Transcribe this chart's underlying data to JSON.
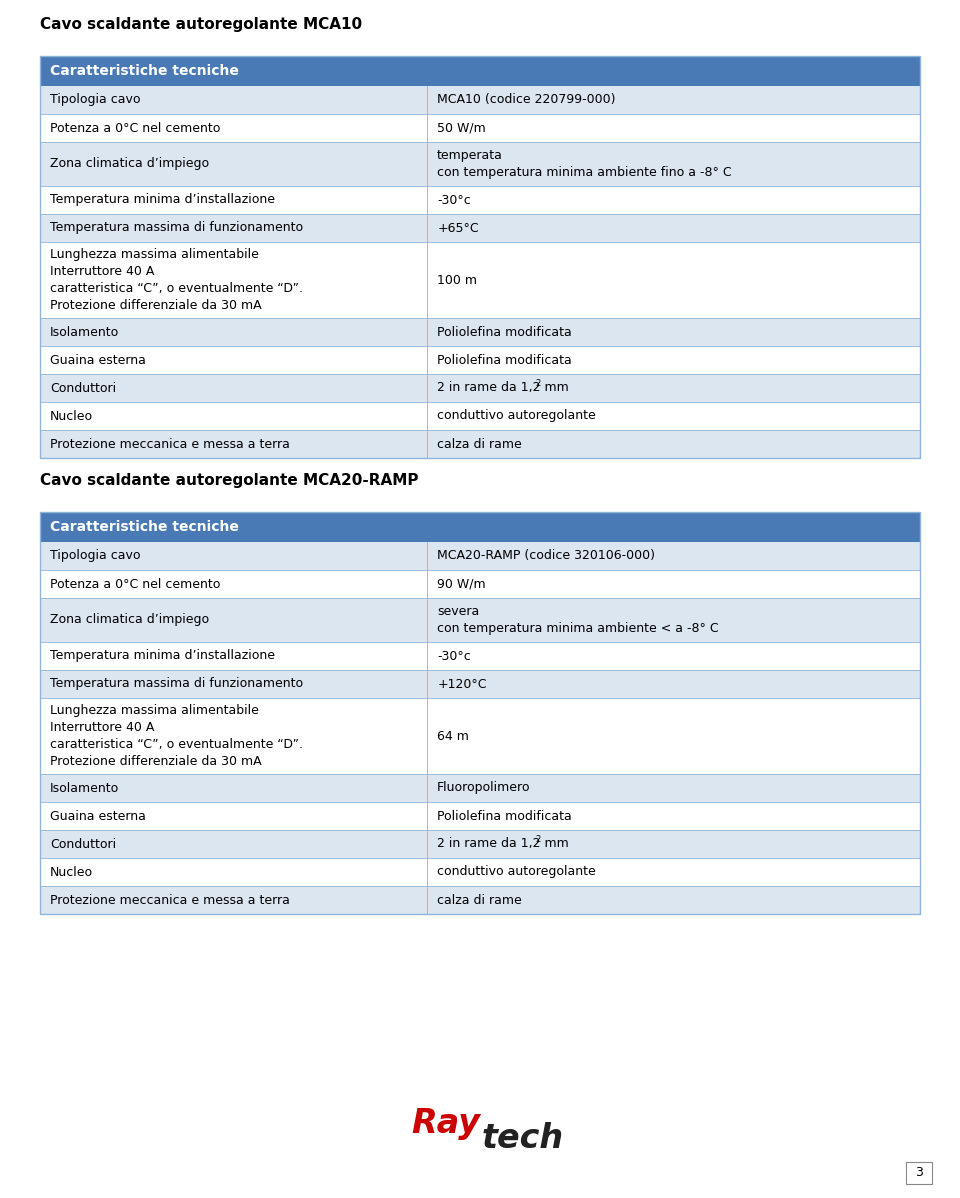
{
  "page_bg": "#ffffff",
  "header_bg": "#4a7ab5",
  "header_text_color": "#ffffff",
  "row_alt1": "#dce6f1",
  "row_alt2": "#ffffff",
  "text_color": "#000000",
  "border_color": "#8fb4d9",
  "title1": "Cavo scaldante autoregolante MCA10",
  "title2": "Cavo scaldante autoregolante MCA20-RAMP",
  "section_header": "Caratteristiche tecniche",
  "col_split": 0.44,
  "table1_rows": [
    [
      "Tipologia cavo",
      "MCA10 (codice 220799-000)"
    ],
    [
      "Potenza a 0°C nel cemento",
      "50 W/m"
    ],
    [
      "Zona climatica d’impiego",
      "temperata\ncon temperatura minima ambiente fino a -8° C"
    ],
    [
      "Temperatura minima d’installazione",
      "-30°c"
    ],
    [
      "Temperatura massima di funzionamento",
      "+65°C"
    ],
    [
      "Lunghezza massima alimentabile\nInterruttore 40 A\ncaratteristica “C”, o eventualmente “D”.\nProtezione differenziale da 30 mA",
      "100 m"
    ],
    [
      "Isolamento",
      "Poliolefina modificata"
    ],
    [
      "Guaina esterna",
      "Poliolefina modificata"
    ],
    [
      "Conduttori",
      "2 in rame da 1,2 mm²"
    ],
    [
      "Nucleo",
      "conduttivo autoregolante"
    ],
    [
      "Protezione meccanica e messa a terra",
      "calza di rame"
    ]
  ],
  "table2_rows": [
    [
      "Tipologia cavo",
      "MCA20-RAMP (codice 320106-000)"
    ],
    [
      "Potenza a 0°C nel cemento",
      "90 W/m"
    ],
    [
      "Zona climatica d’impiego",
      "severa\ncon temperatura minima ambiente < a -8° C"
    ],
    [
      "Temperatura minima d’installazione",
      "-30°c"
    ],
    [
      "Temperatura massima di funzionamento",
      "+120°C"
    ],
    [
      "Lunghezza massima alimentabile\nInterruttore 40 A\ncaratteristica “C”, o eventualmente “D”.\nProtezione differenziale da 30 mA",
      "64 m"
    ],
    [
      "Isolamento",
      "Fluoropolimero"
    ],
    [
      "Guaina esterna",
      "Poliolefina modificata"
    ],
    [
      "Conduttori",
      "2 in rame da 1,2 mm²"
    ],
    [
      "Nucleo",
      "conduttivo autoregolante"
    ],
    [
      "Protezione meccanica e messa a terra",
      "calza di rame"
    ]
  ],
  "font_size_title": 11,
  "font_size_header": 10,
  "font_size_cell": 9,
  "font_size_page_num": 9,
  "raytech_red": "#cc0000",
  "raytech_dark": "#222222",
  "logo_ray_size": 24,
  "logo_tech_size": 24
}
